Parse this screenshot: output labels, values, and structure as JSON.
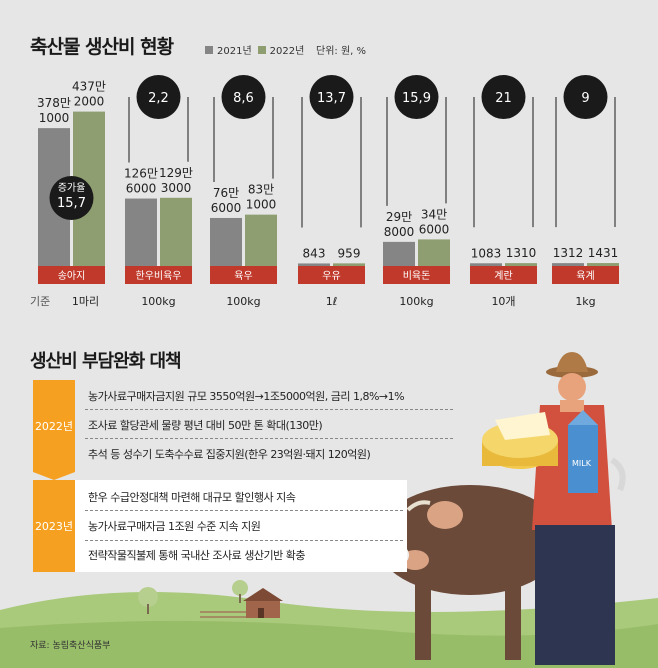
{
  "title": "축산물 생산비 현황",
  "legend": {
    "y2021": "2021년",
    "y2022": "2022년"
  },
  "unit_note": "단위: 원, %",
  "colors": {
    "y2021": "#858585",
    "y2022": "#8e9e71",
    "label_bg": "#c0392b",
    "circle": "#1a1a1a",
    "year_box": "#f5a020",
    "farmer_shirt": "#d2503e",
    "cow": "#6b4a3a",
    "grass": "#a9c97b"
  },
  "chart_data": {
    "type": "bar",
    "title": "축산물 생산비 현황",
    "categories": [
      "송아지",
      "한우비육우",
      "육우",
      "우유",
      "비육돈",
      "계란",
      "육계"
    ],
    "series": [
      {
        "name": "2021년",
        "values": [
          3781000,
          1266000,
          766000,
          843,
          298000,
          1083,
          1312
        ]
      },
      {
        "name": "2022년",
        "values": [
          4372000,
          1293000,
          831000,
          959,
          346000,
          1310,
          1431
        ]
      }
    ],
    "value_labels_2021": [
      [
        "378만",
        "1000"
      ],
      [
        "126만",
        "6000"
      ],
      [
        "76만",
        "6000"
      ],
      [
        "843"
      ],
      [
        "29만",
        "8000"
      ],
      [
        "1083"
      ],
      [
        "1312"
      ]
    ],
    "value_labels_2022": [
      [
        "437만",
        "2000"
      ],
      [
        "129만",
        "3000"
      ],
      [
        "83만",
        "1000"
      ],
      [
        "959"
      ],
      [
        "34만",
        "6000"
      ],
      [
        "1310"
      ],
      [
        "1431"
      ]
    ],
    "increase_rates": [
      "15,7",
      "2,2",
      "8,6",
      "13,7",
      "15,9",
      "21",
      "9"
    ],
    "increase_label": "증가율",
    "basis_label": "기준",
    "basis": [
      "1마리",
      "100kg",
      "100kg",
      "1ℓ",
      "100kg",
      "10개",
      "1kg"
    ]
  },
  "policy": {
    "title": "생산비 부담완화 대책",
    "groups": [
      {
        "year": "2022년",
        "items": [
          "농가사료구매자금지원 규모 3550억원→1조5000억원, 금리 1,8%→1%",
          "조사료 할당관세 물량 평년 대비 50만 톤 확대(130만)",
          "추석 등 성수기 도축수수료 집중지원(한우 23억원·돼지 120억원)"
        ]
      },
      {
        "year": "2023년",
        "items": [
          "한우 수급안정대책 마련해 대규모 할인행사 지속",
          "농가사료구매자금 1조원 수준 지속 지원",
          "전략작물직불제 통해 국내산 조사료 생산기반 확충"
        ]
      }
    ]
  },
  "milk_label": "MILK",
  "source": "자료: 농림축산식품부"
}
